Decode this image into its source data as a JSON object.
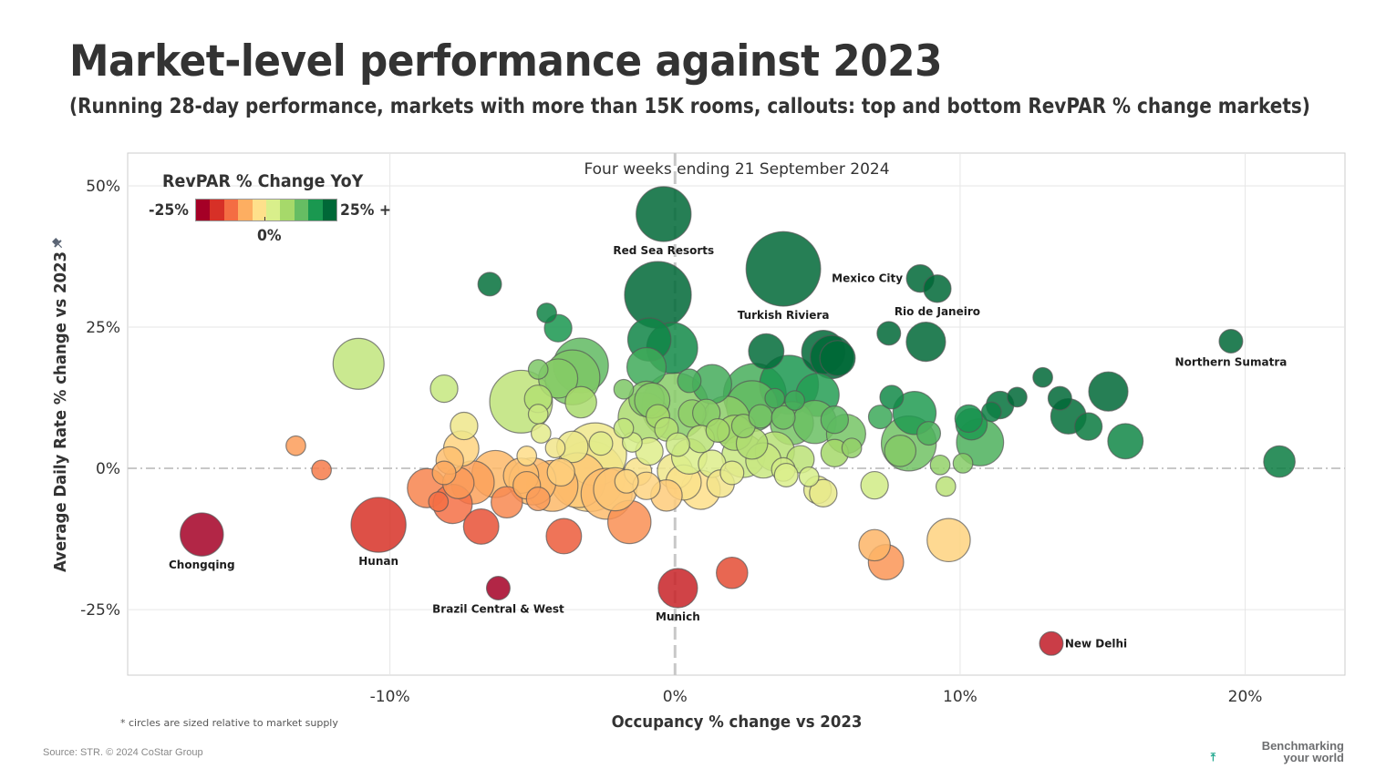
{
  "header": {
    "title": "Market-level performance against 2023",
    "subtitle": "(Running 28-day performance, markets with more than 15K rooms, callouts: top and bottom RevPAR % change markets)"
  },
  "footer": {
    "footnote": "* circles are sized relative to market supply",
    "source": "Source: STR. © 2024 CoStar Group",
    "brand_line1": "Benchmarking",
    "brand_line2": "your world",
    "brand_icon": "pin-icon"
  },
  "legend": {
    "title": "RevPAR % Change YoY",
    "min_label": "-25%",
    "mid_label": "0%",
    "max_label": "25% +",
    "colors": [
      "#a50026",
      "#d73027",
      "#f46d43",
      "#fdae61",
      "#fee08b",
      "#d9ef8b",
      "#a6d96a",
      "#66bd63",
      "#1a9850",
      "#006837"
    ]
  },
  "chart_data": {
    "type": "scatter",
    "title": "Four weeks ending 21 September 2024",
    "xlabel": "Occupancy % change vs 2023",
    "ylabel": "Average Daily Rate % change vs 2023",
    "xlim": [
      -19.2,
      23.5
    ],
    "ylim": [
      -36.6,
      55.8
    ],
    "xticks": [
      {
        "v": -10,
        "label": "-10%"
      },
      {
        "v": 0,
        "label": "0%"
      },
      {
        "v": 10,
        "label": "10%"
      },
      {
        "v": 20,
        "label": "20%"
      }
    ],
    "yticks": [
      {
        "v": 50,
        "label": "50%"
      },
      {
        "v": 25,
        "label": "25%"
      },
      {
        "v": 0,
        "label": "0%"
      },
      {
        "v": -25,
        "label": "-25%"
      }
    ],
    "grid": true,
    "size_encoding": "market supply",
    "color_encoding": "RevPAR % change YoY",
    "legend_position": "top-left",
    "labeled_points": [
      {
        "name": "Red Sea Resorts",
        "x": -0.4,
        "y": 45.0,
        "size": 14,
        "label_pos": "below"
      },
      {
        "name": "Turkish Riviera",
        "x": 3.8,
        "y": 35.3,
        "size": 19,
        "label_pos": "below"
      },
      {
        "name": "Mexico City",
        "x": 8.6,
        "y": 33.6,
        "size": 7,
        "label_pos": "left"
      },
      {
        "name": "Rio de Janeiro",
        "x": 9.2,
        "y": 31.8,
        "size": 7,
        "label_pos": "below"
      },
      {
        "name": "Northern Sumatra",
        "x": 19.5,
        "y": 22.5,
        "size": 6,
        "label_pos": "below"
      },
      {
        "name": "Chongqing",
        "x": -16.6,
        "y": -11.7,
        "size": 11,
        "label_pos": "below"
      },
      {
        "name": "Hunan",
        "x": -10.4,
        "y": -10.0,
        "size": 14,
        "label_pos": "below"
      },
      {
        "name": "Brazil Central & West",
        "x": -6.2,
        "y": -21.2,
        "size": 6,
        "label_pos": "below"
      },
      {
        "name": "Munich",
        "x": 0.1,
        "y": -21.2,
        "size": 10,
        "label_pos": "below"
      },
      {
        "name": "New Delhi",
        "x": 13.2,
        "y": -31.0,
        "size": 6,
        "label_pos": "right"
      }
    ],
    "points": [
      {
        "x": -0.6,
        "y": 30.7,
        "size": 17
      },
      {
        "x": -6.5,
        "y": 32.6,
        "size": 6
      },
      {
        "x": -4.5,
        "y": 27.5,
        "size": 5
      },
      {
        "x": -4.1,
        "y": 24.8,
        "size": 7
      },
      {
        "x": -0.9,
        "y": 22.8,
        "size": 11
      },
      {
        "x": -0.1,
        "y": 21.3,
        "size": 13
      },
      {
        "x": -1.0,
        "y": 17.9,
        "size": 10
      },
      {
        "x": 3.2,
        "y": 20.7,
        "size": 9
      },
      {
        "x": 5.2,
        "y": 20.6,
        "size": 11
      },
      {
        "x": 5.5,
        "y": 19.7,
        "size": 11
      },
      {
        "x": 5.7,
        "y": 19.5,
        "size": 9
      },
      {
        "x": 7.5,
        "y": 23.9,
        "size": 6
      },
      {
        "x": 8.8,
        "y": 22.4,
        "size": 10
      },
      {
        "x": -11.1,
        "y": 18.5,
        "size": 13
      },
      {
        "x": -3.3,
        "y": 18.2,
        "size": 14
      },
      {
        "x": -3.6,
        "y": 16.1,
        "size": 14
      },
      {
        "x": -4.8,
        "y": 17.5,
        "size": 5
      },
      {
        "x": -4.1,
        "y": 15.9,
        "size": 10
      },
      {
        "x": -5.4,
        "y": 11.8,
        "size": 16
      },
      {
        "x": -4.8,
        "y": 12.3,
        "size": 7
      },
      {
        "x": -4.8,
        "y": 9.6,
        "size": 5
      },
      {
        "x": -3.3,
        "y": 11.7,
        "size": 8
      },
      {
        "x": -8.1,
        "y": 14.1,
        "size": 7
      },
      {
        "x": 0.5,
        "y": 15.5,
        "size": 6
      },
      {
        "x": 1.3,
        "y": 14.9,
        "size": 10
      },
      {
        "x": 2.8,
        "y": 13.0,
        "size": 16
      },
      {
        "x": 2.7,
        "y": 11.0,
        "size": 13
      },
      {
        "x": 4.0,
        "y": 14.8,
        "size": 15
      },
      {
        "x": 5.0,
        "y": 13.0,
        "size": 11
      },
      {
        "x": 3.5,
        "y": 12.4,
        "size": 5
      },
      {
        "x": 4.2,
        "y": 12.0,
        "size": 5
      },
      {
        "x": -1.8,
        "y": 14.0,
        "size": 5
      },
      {
        "x": -1.0,
        "y": 12.3,
        "size": 9
      },
      {
        "x": -0.8,
        "y": 12.0,
        "size": 9
      },
      {
        "x": 0.0,
        "y": 11.0,
        "size": 17
      },
      {
        "x": -1.1,
        "y": 8.9,
        "size": 13
      },
      {
        "x": -0.6,
        "y": 9.2,
        "size": 6
      },
      {
        "x": 0.6,
        "y": 9.7,
        "size": 7
      },
      {
        "x": 1.1,
        "y": 9.8,
        "size": 7
      },
      {
        "x": 1.8,
        "y": 8.6,
        "size": 12
      },
      {
        "x": 2.4,
        "y": 7.5,
        "size": 6
      },
      {
        "x": 3.0,
        "y": 9.2,
        "size": 6
      },
      {
        "x": 3.8,
        "y": 9.0,
        "size": 6
      },
      {
        "x": 4.1,
        "y": 8.0,
        "size": 11
      },
      {
        "x": 4.9,
        "y": 8.2,
        "size": 11
      },
      {
        "x": 5.6,
        "y": 8.6,
        "size": 7
      },
      {
        "x": 6.0,
        "y": 6.1,
        "size": 10
      },
      {
        "x": 6.2,
        "y": 3.6,
        "size": 5
      },
      {
        "x": 5.6,
        "y": 2.7,
        "size": 7
      },
      {
        "x": 7.2,
        "y": 9.1,
        "size": 6
      },
      {
        "x": 7.6,
        "y": 12.6,
        "size": 6
      },
      {
        "x": 8.4,
        "y": 9.8,
        "size": 11
      },
      {
        "x": 8.2,
        "y": 4.4,
        "size": 14
      },
      {
        "x": 7.9,
        "y": 3.1,
        "size": 8
      },
      {
        "x": 8.9,
        "y": 6.2,
        "size": 6
      },
      {
        "x": 9.3,
        "y": 0.6,
        "size": 5
      },
      {
        "x": 10.1,
        "y": 0.9,
        "size": 5
      },
      {
        "x": 10.3,
        "y": 8.8,
        "size": 7
      },
      {
        "x": 10.4,
        "y": 7.8,
        "size": 8
      },
      {
        "x": 10.7,
        "y": 4.6,
        "size": 12
      },
      {
        "x": 11.1,
        "y": 10.0,
        "size": 5
      },
      {
        "x": 11.4,
        "y": 11.2,
        "size": 7
      },
      {
        "x": 12.0,
        "y": 12.6,
        "size": 5
      },
      {
        "x": 12.9,
        "y": 16.1,
        "size": 5
      },
      {
        "x": 13.5,
        "y": 12.4,
        "size": 6
      },
      {
        "x": 13.8,
        "y": 9.2,
        "size": 9
      },
      {
        "x": 14.5,
        "y": 7.4,
        "size": 7
      },
      {
        "x": 15.2,
        "y": 13.6,
        "size": 10
      },
      {
        "x": 15.8,
        "y": 4.8,
        "size": 9
      },
      {
        "x": 21.2,
        "y": 1.2,
        "size": 8
      },
      {
        "x": 7.0,
        "y": -3.0,
        "size": 7
      },
      {
        "x": 9.5,
        "y": -3.2,
        "size": 5
      },
      {
        "x": 9.6,
        "y": -12.7,
        "size": 11
      },
      {
        "x": 7.0,
        "y": -13.6,
        "size": 8
      },
      {
        "x": 7.4,
        "y": -16.6,
        "size": 9
      },
      {
        "x": 2.0,
        "y": -18.5,
        "size": 8
      },
      {
        "x": -13.3,
        "y": 4.0,
        "size": 5
      },
      {
        "x": -12.4,
        "y": -0.3,
        "size": 5
      },
      {
        "x": -6.8,
        "y": -10.3,
        "size": 9
      },
      {
        "x": -3.9,
        "y": -12.0,
        "size": 9
      },
      {
        "x": -1.6,
        "y": -9.5,
        "size": 11
      },
      {
        "x": -8.7,
        "y": -3.5,
        "size": 10
      },
      {
        "x": -7.8,
        "y": -6.3,
        "size": 10
      },
      {
        "x": -7.1,
        "y": -2.5,
        "size": 11
      },
      {
        "x": -7.6,
        "y": -2.6,
        "size": 8
      },
      {
        "x": -8.3,
        "y": -5.9,
        "size": 5
      },
      {
        "x": -8.1,
        "y": -0.8,
        "size": 6
      },
      {
        "x": -7.9,
        "y": 1.4,
        "size": 7
      },
      {
        "x": -7.5,
        "y": 3.5,
        "size": 9
      },
      {
        "x": -7.4,
        "y": 7.5,
        "size": 7
      },
      {
        "x": -6.3,
        "y": -1.0,
        "size": 12
      },
      {
        "x": -5.9,
        "y": -6.0,
        "size": 8
      },
      {
        "x": -5.4,
        "y": -1.3,
        "size": 9
      },
      {
        "x": -5.2,
        "y": -3.0,
        "size": 7
      },
      {
        "x": -5.0,
        "y": -2.3,
        "size": 12
      },
      {
        "x": -4.8,
        "y": -5.4,
        "size": 6
      },
      {
        "x": -4.3,
        "y": -3.1,
        "size": 13
      },
      {
        "x": -4.0,
        "y": -0.7,
        "size": 7
      },
      {
        "x": -3.4,
        "y": -2.1,
        "size": 14
      },
      {
        "x": -3.0,
        "y": -1.4,
        "size": 18
      },
      {
        "x": -2.8,
        "y": 2.5,
        "size": 16
      },
      {
        "x": -2.4,
        "y": -4.5,
        "size": 13
      },
      {
        "x": -2.1,
        "y": -3.7,
        "size": 11
      },
      {
        "x": -3.6,
        "y": 3.8,
        "size": 8
      },
      {
        "x": -4.7,
        "y": 6.2,
        "size": 5
      },
      {
        "x": -5.2,
        "y": 2.2,
        "size": 5
      },
      {
        "x": -1.5,
        "y": 4.6,
        "size": 5
      },
      {
        "x": -1.7,
        "y": -2.3,
        "size": 6
      },
      {
        "x": -1.3,
        "y": -0.6,
        "size": 7
      },
      {
        "x": -1.0,
        "y": -3.1,
        "size": 7
      },
      {
        "x": -0.9,
        "y": 3.0,
        "size": 7
      },
      {
        "x": -0.3,
        "y": -4.8,
        "size": 8
      },
      {
        "x": 0.0,
        "y": -0.5,
        "size": 9
      },
      {
        "x": 0.3,
        "y": -2.5,
        "size": 9
      },
      {
        "x": 0.5,
        "y": 2.1,
        "size": 9
      },
      {
        "x": 0.9,
        "y": -3.8,
        "size": 10
      },
      {
        "x": 1.3,
        "y": 0.8,
        "size": 7
      },
      {
        "x": 1.6,
        "y": -2.7,
        "size": 7
      },
      {
        "x": 2.0,
        "y": -0.8,
        "size": 6
      },
      {
        "x": 2.4,
        "y": 2.2,
        "size": 11
      },
      {
        "x": 2.7,
        "y": 4.4,
        "size": 8
      },
      {
        "x": 3.1,
        "y": 1.4,
        "size": 9
      },
      {
        "x": 3.5,
        "y": 3.0,
        "size": 10
      },
      {
        "x": 3.8,
        "y": -0.2,
        "size": 6
      },
      {
        "x": 3.9,
        "y": -1.2,
        "size": 6
      },
      {
        "x": 4.4,
        "y": 1.6,
        "size": 7
      },
      {
        "x": 5.0,
        "y": -3.8,
        "size": 7
      },
      {
        "x": 5.2,
        "y": -4.4,
        "size": 7
      },
      {
        "x": 4.7,
        "y": -1.5,
        "size": 5
      },
      {
        "x": 0.9,
        "y": 5.2,
        "size": 7
      },
      {
        "x": 1.5,
        "y": 6.7,
        "size": 6
      },
      {
        "x": 2.1,
        "y": 6.3,
        "size": 9
      },
      {
        "x": -0.3,
        "y": 6.9,
        "size": 6
      },
      {
        "x": 0.1,
        "y": 4.2,
        "size": 6
      },
      {
        "x": -1.8,
        "y": 7.1,
        "size": 5
      },
      {
        "x": -2.6,
        "y": 4.4,
        "size": 6
      },
      {
        "x": -4.2,
        "y": 3.6,
        "size": 5
      }
    ]
  }
}
